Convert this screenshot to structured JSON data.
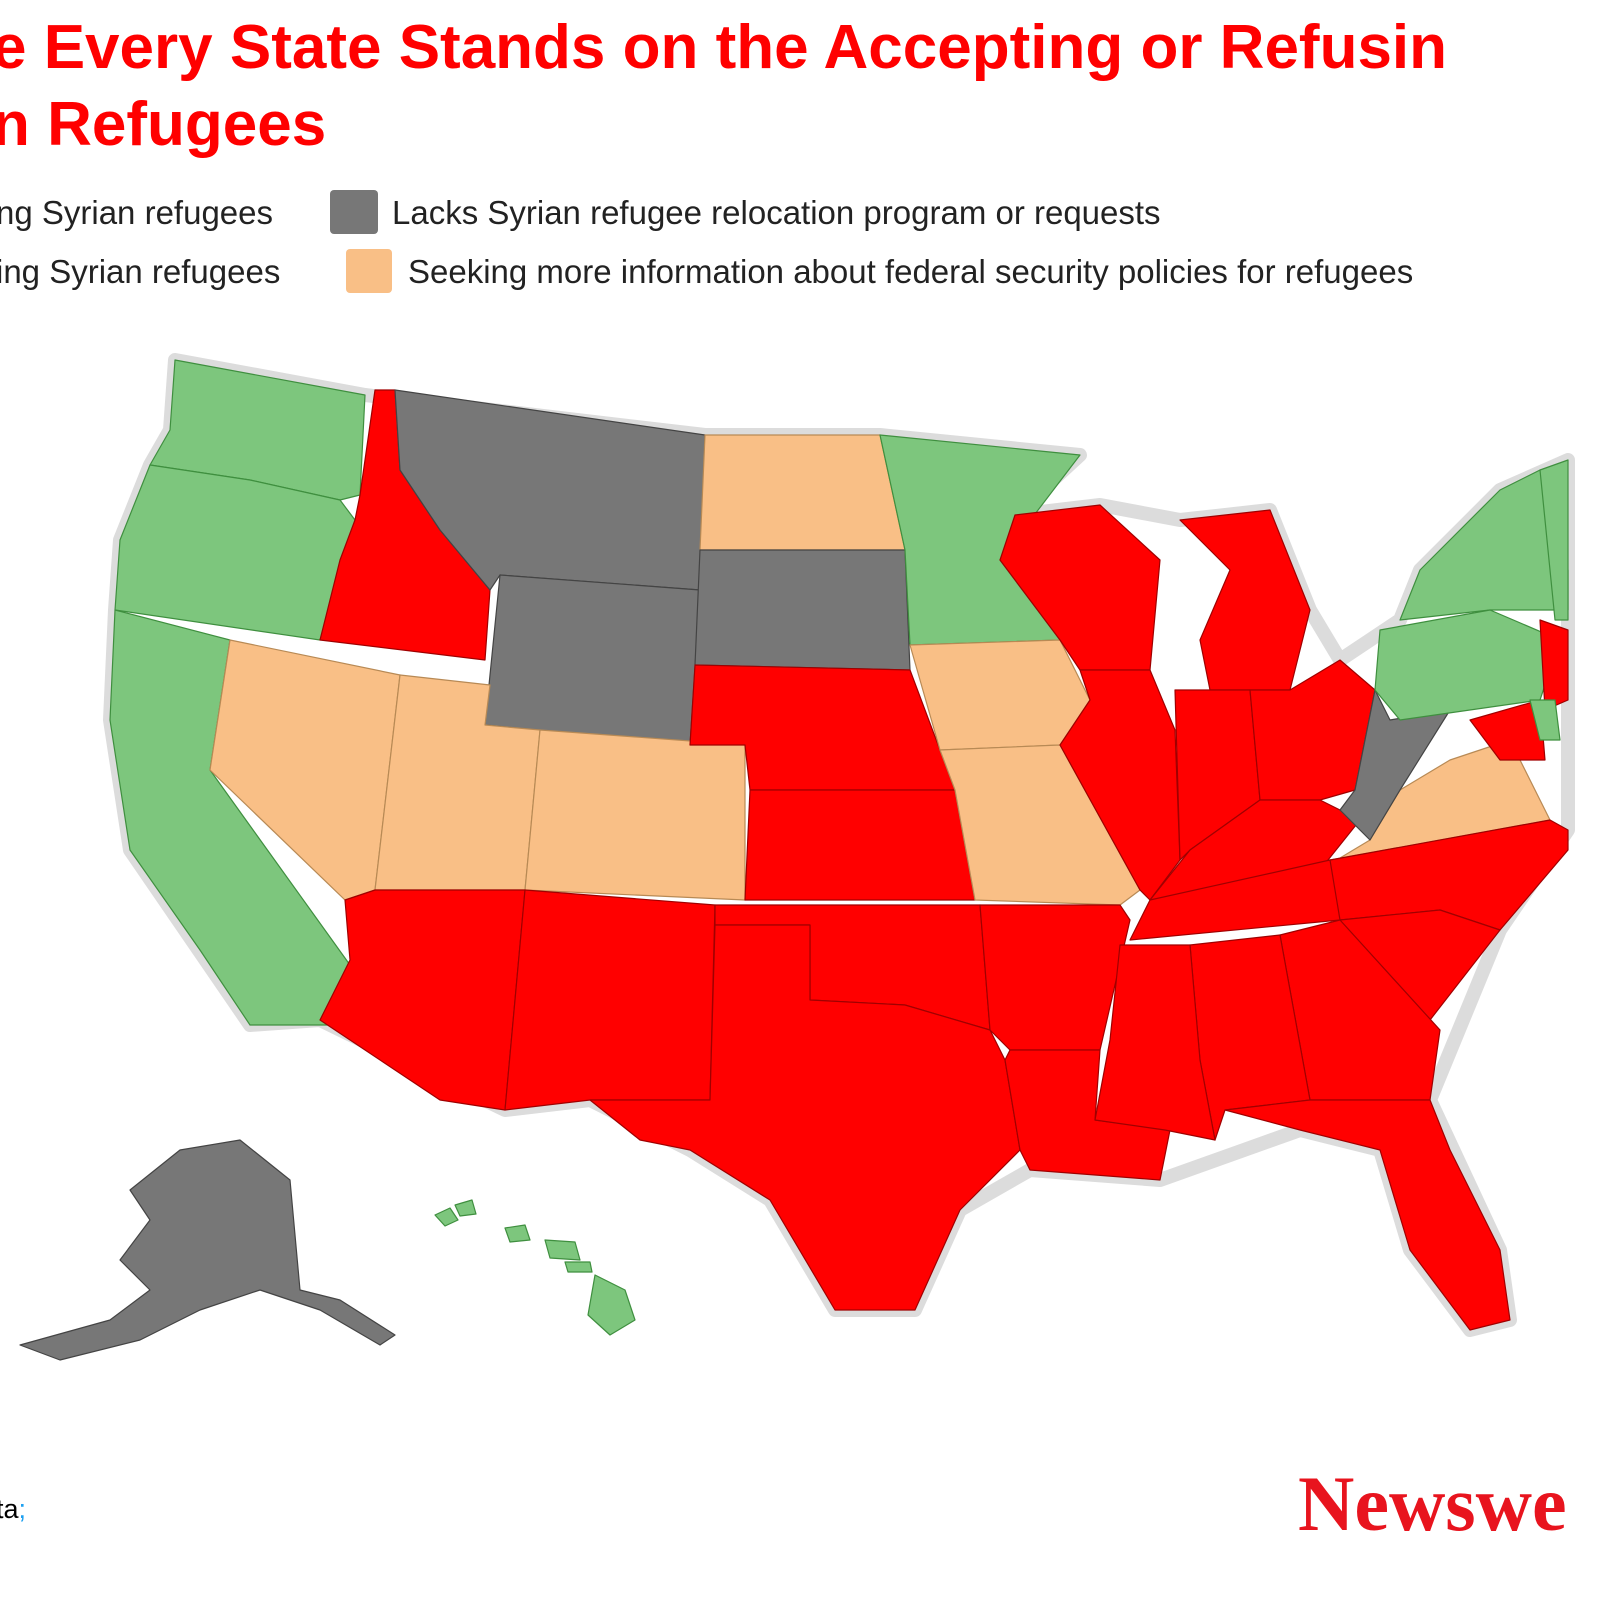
{
  "header": {
    "title_line_1": "e Every State Stands on the Accepting or Refusin",
    "title_line_2": "n Refugees"
  },
  "legend": {
    "items": [
      {
        "label": "ng Syrian refugees"
      },
      {
        "label": "Lacks Syrian refugee relocation program or requests"
      },
      {
        "label": "ing Syrian refugees"
      },
      {
        "label": "Seeking more information about federal security policies for refugees"
      }
    ]
  },
  "footer": {
    "source": "ta",
    "separator": ";",
    "logo": "Newswe"
  }
}
